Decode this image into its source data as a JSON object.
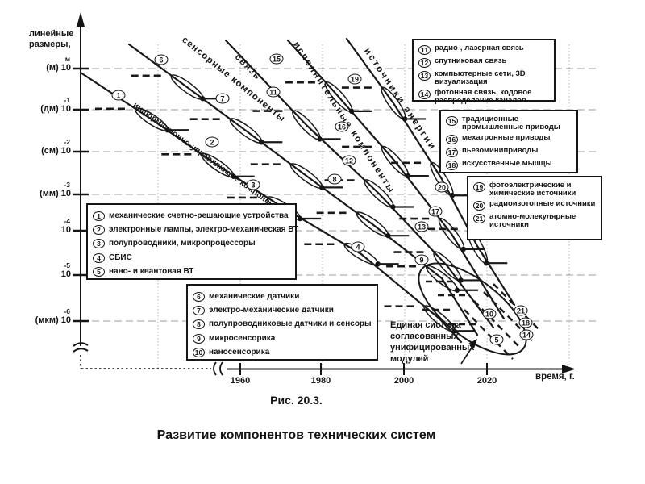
{
  "figure": {
    "number": "Рис. 20.3.",
    "caption": "Развитие компонентов технических систем"
  },
  "axes": {
    "y_title_lines": [
      "линейные",
      "размеры,"
    ],
    "x_title": "время, г.",
    "x_ticks": [
      "1960",
      "1980",
      "2000",
      "2020"
    ],
    "y_ticks": [
      {
        "label": "(м) 10",
        "sup": "м"
      },
      {
        "label": "(дм) 10",
        "sup": "-1"
      },
      {
        "label": "(см) 10",
        "sup": "-2"
      },
      {
        "label": "(мм) 10",
        "sup": "-3"
      },
      {
        "label": "10",
        "sup": "-4"
      },
      {
        "label": "10",
        "sup": "-5"
      },
      {
        "label": "(мкм) 10",
        "sup": "-6"
      }
    ]
  },
  "curve_labels": [
    "информационно-управляющие компоненты",
    "сенсорные компоненты",
    "связь",
    "исполнительные компоненты",
    "источники энергии"
  ],
  "legend_boxes": [
    {
      "id": "computing",
      "items": [
        {
          "num": "1",
          "text": "механические счетно-решающие устройства"
        },
        {
          "num": "2",
          "text": "электронные лампы, электро-механическая ВТ"
        },
        {
          "num": "3",
          "text": "полупроводники, микропроцессоры"
        },
        {
          "num": "4",
          "text": "СБИС"
        },
        {
          "num": "5",
          "text": "нано- и квантовая ВТ"
        }
      ]
    },
    {
      "id": "sensors",
      "items": [
        {
          "num": "6",
          "text": "механические датчики"
        },
        {
          "num": "7",
          "text": "электро-механические датчики"
        },
        {
          "num": "8",
          "text": "полупроводниковые датчики и сенсоры"
        },
        {
          "num": "9",
          "text": "микросенсорика"
        },
        {
          "num": "10",
          "text": "наносенсорика"
        }
      ]
    },
    {
      "id": "communication",
      "items": [
        {
          "num": "11",
          "text": "радио-, лазерная связь"
        },
        {
          "num": "12",
          "text": "спутниковая связь"
        },
        {
          "num": "13",
          "text": "компьютерные сети, 3D визуализация"
        },
        {
          "num": "14",
          "text": "фотонная связь, кодовое распределение каналов"
        }
      ]
    },
    {
      "id": "actuators",
      "items": [
        {
          "num": "15",
          "text": "традиционные промышленные приводы"
        },
        {
          "num": "16",
          "text": "мехатронные приводы"
        },
        {
          "num": "17",
          "text": "пьезоминиприводы"
        },
        {
          "num": "18",
          "text": "искусственные мышцы"
        }
      ]
    },
    {
      "id": "power-sources",
      "items": [
        {
          "num": "19",
          "text": "фотоэлектрические и химические источники"
        },
        {
          "num": "20",
          "text": "радиоизотопные источники"
        },
        {
          "num": "21",
          "text": "атомно-молекулярные источники"
        }
      ]
    }
  ],
  "markers": [
    "1",
    "2",
    "3",
    "4",
    "5",
    "6",
    "7",
    "8",
    "9",
    "10",
    "11",
    "12",
    "13",
    "14",
    "15",
    "16",
    "17",
    "18",
    "19",
    "20",
    "21"
  ],
  "annotation": {
    "lines": [
      "Единая система",
      "согласованных",
      "унифицированных",
      "модулей"
    ]
  },
  "chart_data": {
    "type": "line",
    "title": "Развитие компонентов технических систем",
    "xlabel": "время, г.",
    "ylabel": "линейные размеры",
    "y_scale": "log",
    "x_ticks": [
      1960,
      1980,
      2000,
      2020
    ],
    "y_tick_labels": [
      "(м) 10^м",
      "(дм) 10^-1",
      "(см) 10^-2",
      "(мм) 10^-3",
      "10^-4",
      "10^-5",
      "(мкм) 10^-6"
    ],
    "grid": true,
    "annotation": "Единая система согласованных унифицированных модулей",
    "series": [
      {
        "name": "информационно-управляющие компоненты",
        "stages": [
          {
            "marker": 1,
            "label": "механические счетно-решающие устройства",
            "year": 1930,
            "size_exp": -0.6
          },
          {
            "marker": 2,
            "label": "электронные лампы, электро-механическая ВТ",
            "year": 1953,
            "size_exp": -1.8
          },
          {
            "marker": 3,
            "label": "полупроводники, микропроцессоры",
            "year": 1963,
            "size_exp": -2.8
          },
          {
            "marker": 4,
            "label": "СБИС",
            "year": 1989,
            "size_exp": -4.3
          },
          {
            "marker": 5,
            "label": "нано- и квантовая ВТ",
            "year": 2024,
            "size_exp": -6.5
          }
        ]
      },
      {
        "name": "сенсорные компоненты",
        "stages": [
          {
            "marker": 6,
            "label": "механические датчики",
            "year": 1940,
            "size_exp": 0.2
          },
          {
            "marker": 7,
            "label": "электро-механические датчики",
            "year": 1956,
            "size_exp": -0.7
          },
          {
            "marker": 8,
            "label": "полупроводниковые датчики и сенсоры",
            "year": 1983,
            "size_exp": -2.6
          },
          {
            "marker": 9,
            "label": "микросенсорика",
            "year": 2005,
            "size_exp": -4.6
          },
          {
            "marker": 10,
            "label": "наносенсорика",
            "year": 2022,
            "size_exp": -5.8
          }
        ]
      },
      {
        "name": "связь",
        "stages": [
          {
            "marker": 11,
            "label": "радио-, лазерная связь",
            "year": 1968,
            "size_exp": -0.6
          },
          {
            "marker": 12,
            "label": "спутниковая связь",
            "year": 1987,
            "size_exp": -2.2
          },
          {
            "marker": 13,
            "label": "компьютерные сети, 3D визуализация",
            "year": 2005,
            "size_exp": -3.8
          },
          {
            "marker": 14,
            "label": "фотонная связь, кодовое распределение каналов",
            "year": 2031,
            "size_exp": -6.3
          }
        ]
      },
      {
        "name": "исполнительные компоненты",
        "stages": [
          {
            "marker": 15,
            "label": "традиционные промышленные приводы",
            "year": 1969,
            "size_exp": 0.2
          },
          {
            "marker": 16,
            "label": "мехатронные приводы",
            "year": 1985,
            "size_exp": -1.4
          },
          {
            "marker": 17,
            "label": "пьезоминиприводы",
            "year": 2008,
            "size_exp": -3.4
          },
          {
            "marker": 18,
            "label": "искусственные мышцы",
            "year": 2031,
            "size_exp": -6.1
          }
        ]
      },
      {
        "name": "источники энергии",
        "stages": [
          {
            "marker": 19,
            "label": "фотоэлектрические и химические источники",
            "year": 1988,
            "size_exp": -0.3
          },
          {
            "marker": 20,
            "label": "радиоизотопные источники",
            "year": 2010,
            "size_exp": -2.8
          },
          {
            "marker": 21,
            "label": "атомно-молекулярные источники",
            "year": 2030,
            "size_exp": -5.8
          }
        ]
      }
    ]
  }
}
